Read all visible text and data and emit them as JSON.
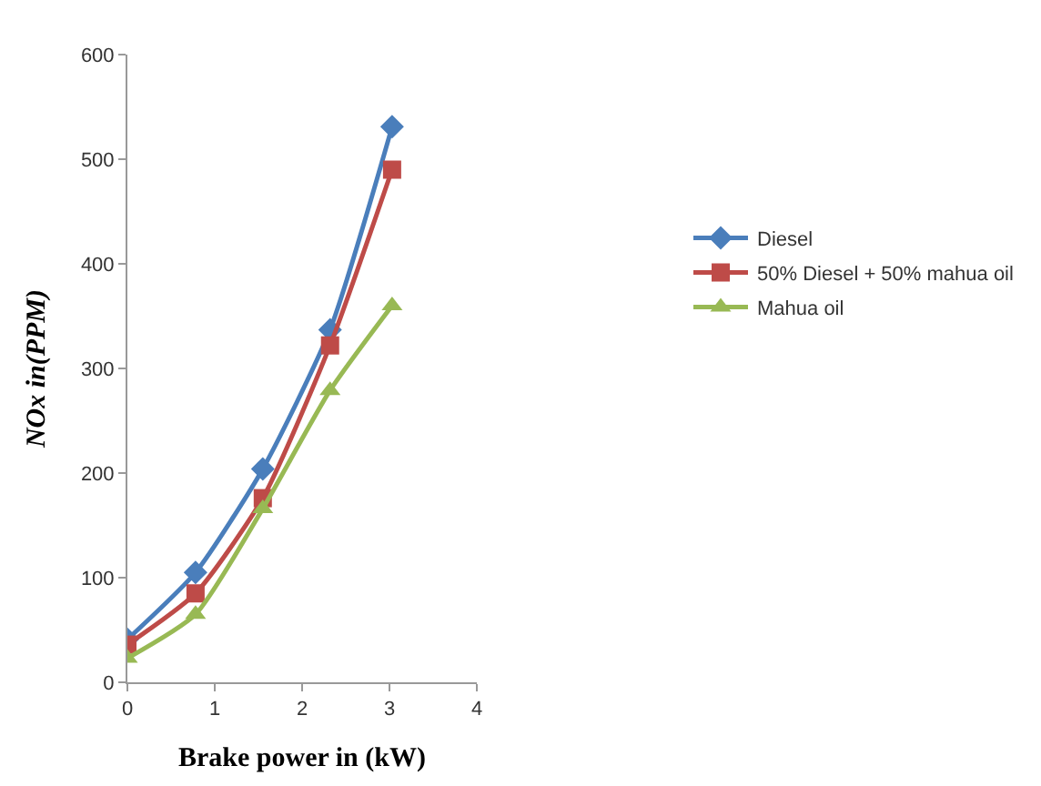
{
  "chart_data": {
    "type": "line",
    "xlabel": "Brake power in (kW)",
    "ylabel": "NOx in(PPM)",
    "x": [
      0,
      0.78,
      1.55,
      2.32,
      3.03
    ],
    "series": [
      {
        "name": "Diesel",
        "color": "#4a7ebb",
        "marker": "diamond",
        "values": [
          41,
          105,
          204,
          337,
          531
        ]
      },
      {
        "name": "50% Diesel + 50% mahua oil",
        "color": "#be4b48",
        "marker": "square",
        "values": [
          36,
          85,
          176,
          322,
          490
        ]
      },
      {
        "name": "Mahua oil",
        "color": "#98b954",
        "marker": "triangle",
        "values": [
          23,
          65,
          166,
          279,
          360
        ]
      }
    ],
    "xlim": [
      0,
      4
    ],
    "xticks": [
      0,
      1,
      2,
      3,
      4
    ],
    "ylim": [
      0,
      600
    ],
    "yticks": [
      0,
      100,
      200,
      300,
      400,
      500,
      600
    ],
    "legend": "right"
  }
}
